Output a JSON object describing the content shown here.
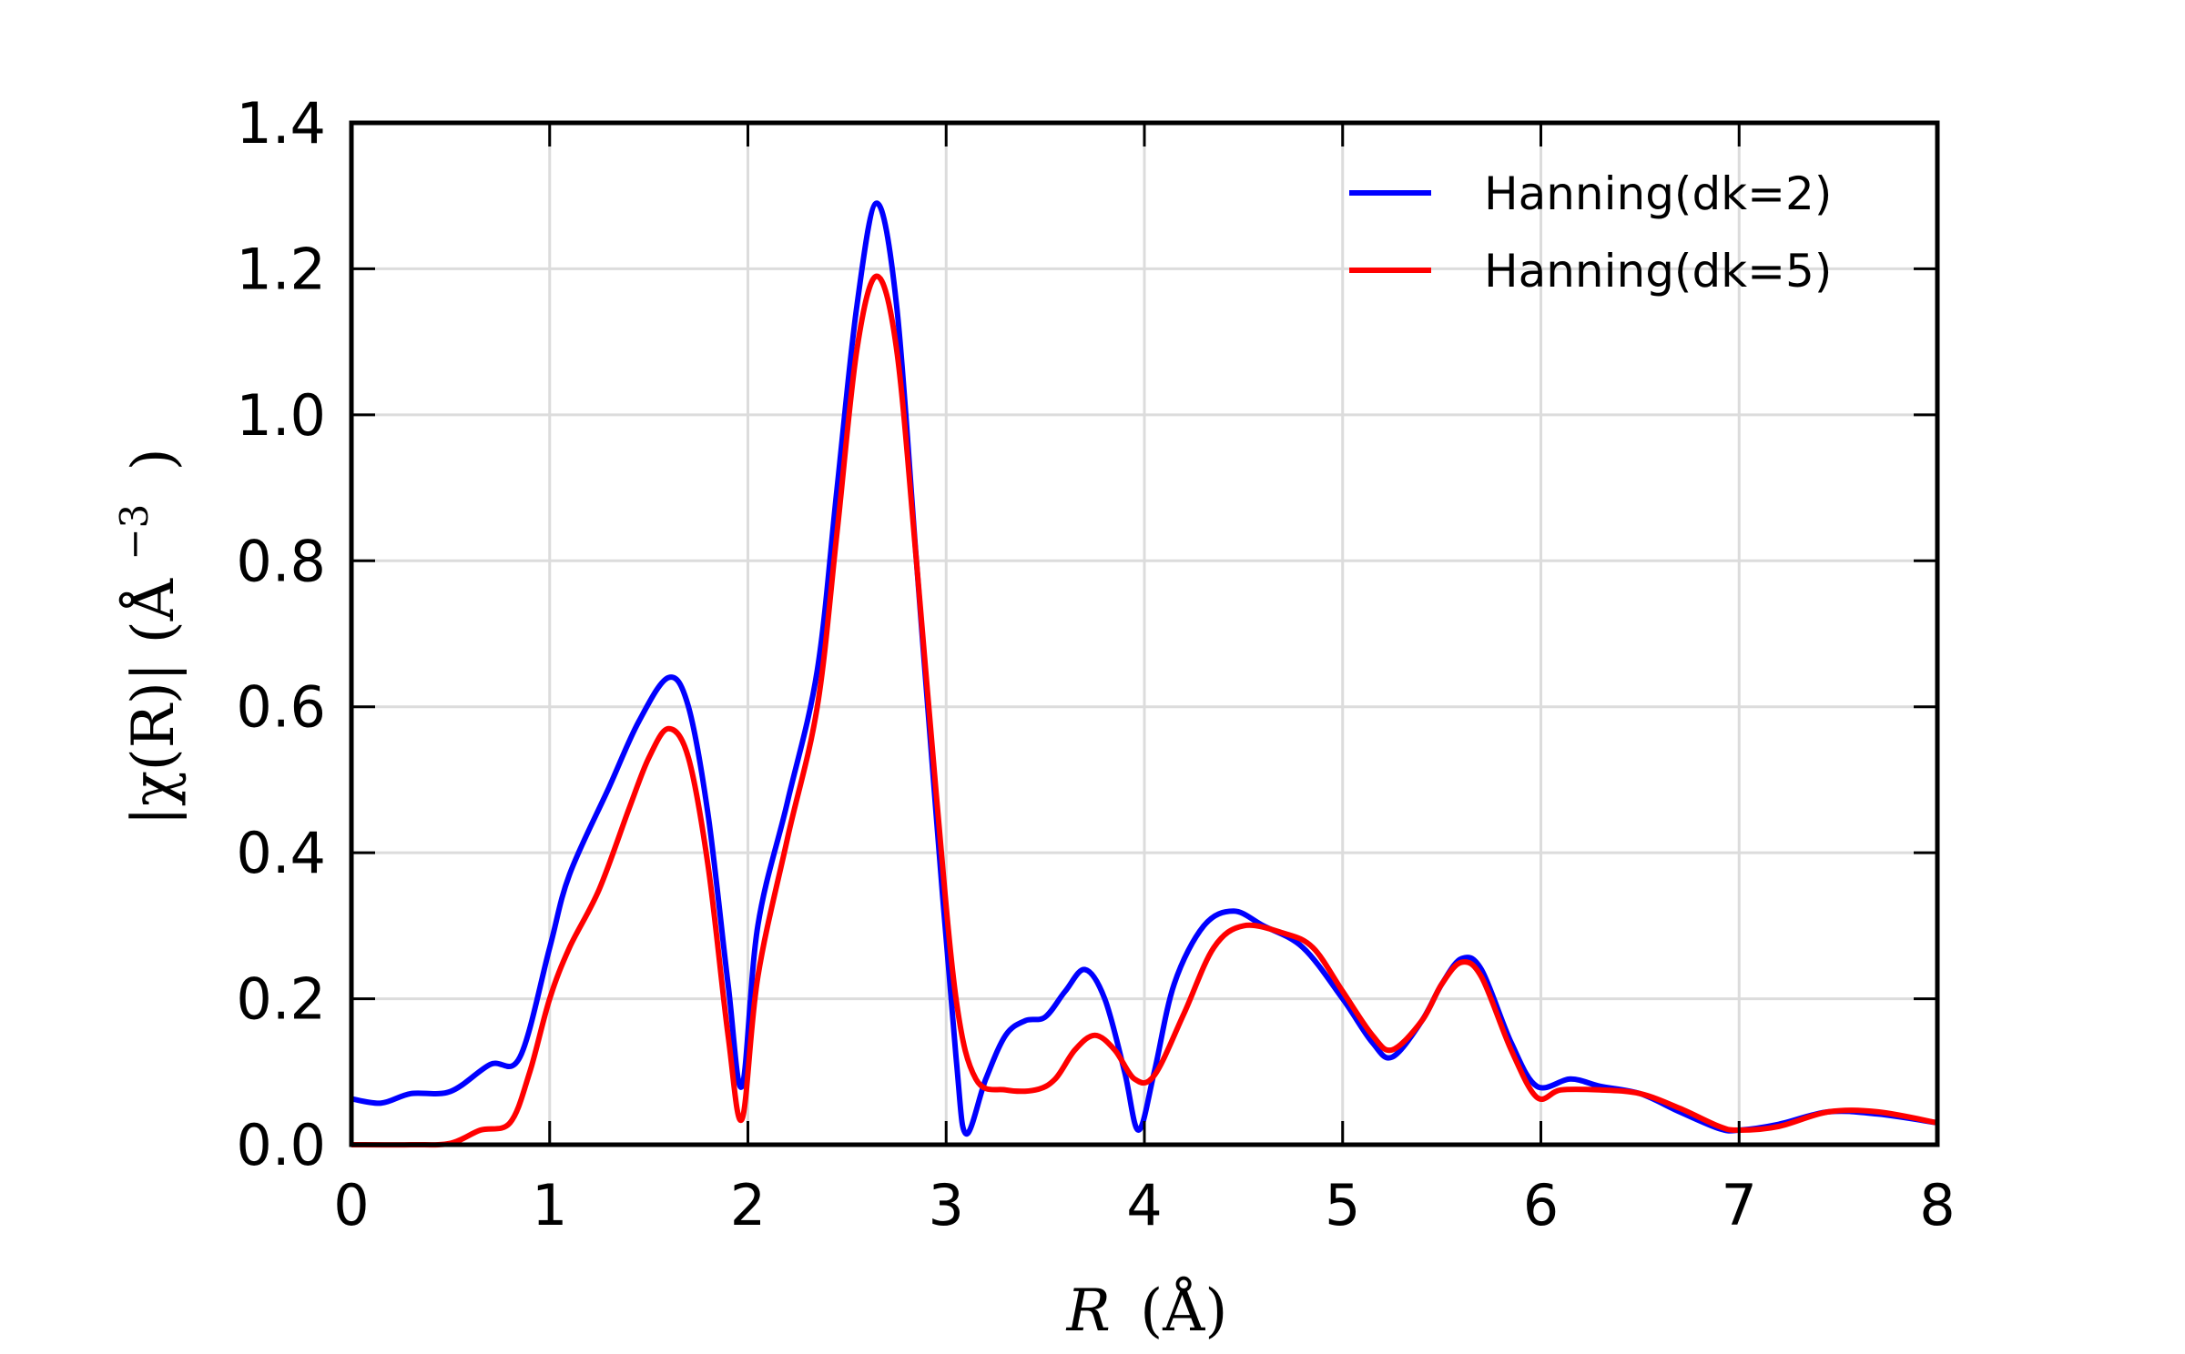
{
  "chart_data": {
    "type": "line",
    "xlabel": {
      "symbol": "R",
      "unit": "(Å)"
    },
    "ylabel": {
      "text": "|χ(R)| (Å",
      "exponent": "−3",
      "close": ")"
    },
    "xlim": [
      0,
      8
    ],
    "ylim": [
      0,
      1.4
    ],
    "xticks": [
      "0",
      "1",
      "2",
      "3",
      "4",
      "5",
      "6",
      "7",
      "8"
    ],
    "yticks": [
      "0.0",
      "0.2",
      "0.4",
      "0.6",
      "0.8",
      "1.0",
      "1.2",
      "1.4"
    ],
    "grid": true,
    "legend_position": "top-right",
    "series": [
      {
        "name": "Hanning(dk=2)",
        "color": "#0000ff",
        "points": [
          [
            0.0,
            0.063
          ],
          [
            0.15,
            0.057
          ],
          [
            0.3,
            0.07
          ],
          [
            0.5,
            0.073
          ],
          [
            0.7,
            0.11
          ],
          [
            0.85,
            0.12
          ],
          [
            1.0,
            0.27
          ],
          [
            1.1,
            0.37
          ],
          [
            1.3,
            0.49
          ],
          [
            1.45,
            0.58
          ],
          [
            1.6,
            0.64
          ],
          [
            1.7,
            0.6
          ],
          [
            1.8,
            0.45
          ],
          [
            1.9,
            0.22
          ],
          [
            1.97,
            0.08
          ],
          [
            2.05,
            0.3
          ],
          [
            2.2,
            0.47
          ],
          [
            2.35,
            0.65
          ],
          [
            2.45,
            0.9
          ],
          [
            2.55,
            1.15
          ],
          [
            2.65,
            1.29
          ],
          [
            2.75,
            1.15
          ],
          [
            2.85,
            0.8
          ],
          [
            2.95,
            0.45
          ],
          [
            3.05,
            0.12
          ],
          [
            3.1,
            0.015
          ],
          [
            3.2,
            0.09
          ],
          [
            3.3,
            0.15
          ],
          [
            3.4,
            0.17
          ],
          [
            3.5,
            0.175
          ],
          [
            3.6,
            0.21
          ],
          [
            3.7,
            0.24
          ],
          [
            3.8,
            0.2
          ],
          [
            3.9,
            0.1
          ],
          [
            3.97,
            0.02
          ],
          [
            4.05,
            0.1
          ],
          [
            4.15,
            0.22
          ],
          [
            4.3,
            0.3
          ],
          [
            4.45,
            0.32
          ],
          [
            4.6,
            0.3
          ],
          [
            4.8,
            0.27
          ],
          [
            5.0,
            0.2
          ],
          [
            5.15,
            0.14
          ],
          [
            5.25,
            0.12
          ],
          [
            5.4,
            0.17
          ],
          [
            5.5,
            0.22
          ],
          [
            5.6,
            0.255
          ],
          [
            5.7,
            0.24
          ],
          [
            5.85,
            0.14
          ],
          [
            5.98,
            0.08
          ],
          [
            6.15,
            0.09
          ],
          [
            6.3,
            0.08
          ],
          [
            6.5,
            0.07
          ],
          [
            6.7,
            0.045
          ],
          [
            6.9,
            0.022
          ],
          [
            7.0,
            0.02
          ],
          [
            7.2,
            0.028
          ],
          [
            7.45,
            0.045
          ],
          [
            7.7,
            0.042
          ],
          [
            8.0,
            0.03
          ]
        ]
      },
      {
        "name": "Hanning(dk=5)",
        "color": "#ff0000",
        "points": [
          [
            0.0,
            0.0
          ],
          [
            0.3,
            0.0
          ],
          [
            0.5,
            0.002
          ],
          [
            0.65,
            0.02
          ],
          [
            0.8,
            0.03
          ],
          [
            0.9,
            0.1
          ],
          [
            1.0,
            0.2
          ],
          [
            1.1,
            0.27
          ],
          [
            1.25,
            0.35
          ],
          [
            1.4,
            0.46
          ],
          [
            1.5,
            0.53
          ],
          [
            1.6,
            0.57
          ],
          [
            1.7,
            0.53
          ],
          [
            1.8,
            0.38
          ],
          [
            1.9,
            0.15
          ],
          [
            1.97,
            0.035
          ],
          [
            2.05,
            0.23
          ],
          [
            2.2,
            0.42
          ],
          [
            2.35,
            0.6
          ],
          [
            2.45,
            0.84
          ],
          [
            2.55,
            1.09
          ],
          [
            2.65,
            1.19
          ],
          [
            2.75,
            1.09
          ],
          [
            2.85,
            0.8
          ],
          [
            2.95,
            0.48
          ],
          [
            3.05,
            0.2
          ],
          [
            3.15,
            0.09
          ],
          [
            3.3,
            0.075
          ],
          [
            3.45,
            0.075
          ],
          [
            3.55,
            0.09
          ],
          [
            3.65,
            0.13
          ],
          [
            3.75,
            0.15
          ],
          [
            3.85,
            0.13
          ],
          [
            3.95,
            0.09
          ],
          [
            4.05,
            0.095
          ],
          [
            4.2,
            0.18
          ],
          [
            4.35,
            0.27
          ],
          [
            4.5,
            0.3
          ],
          [
            4.7,
            0.29
          ],
          [
            4.85,
            0.27
          ],
          [
            5.0,
            0.21
          ],
          [
            5.15,
            0.15
          ],
          [
            5.25,
            0.13
          ],
          [
            5.4,
            0.17
          ],
          [
            5.5,
            0.22
          ],
          [
            5.6,
            0.25
          ],
          [
            5.7,
            0.23
          ],
          [
            5.85,
            0.13
          ],
          [
            5.98,
            0.065
          ],
          [
            6.1,
            0.075
          ],
          [
            6.3,
            0.075
          ],
          [
            6.5,
            0.07
          ],
          [
            6.7,
            0.05
          ],
          [
            6.9,
            0.025
          ],
          [
            7.0,
            0.02
          ],
          [
            7.2,
            0.025
          ],
          [
            7.45,
            0.045
          ],
          [
            7.7,
            0.045
          ],
          [
            8.0,
            0.03
          ]
        ]
      }
    ]
  }
}
